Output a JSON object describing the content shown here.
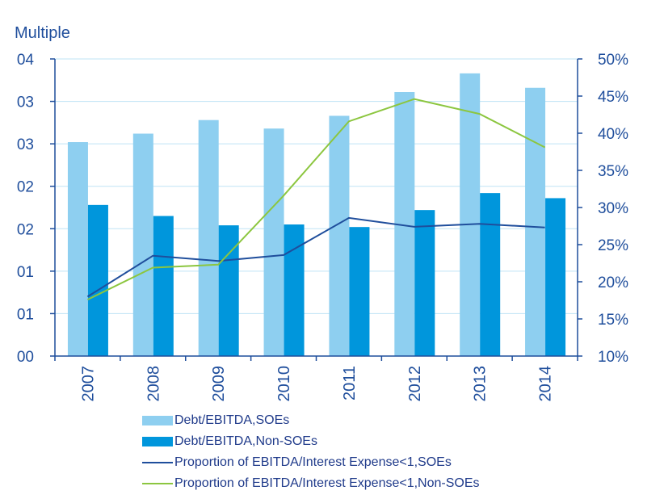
{
  "chart_data": {
    "type": "bar",
    "y_unit_label": "Multiple",
    "categories": [
      "2007",
      "2008",
      "2009",
      "2010",
      "2011",
      "2012",
      "2013",
      "2014"
    ],
    "left_axis": {
      "ticks": [
        "00",
        "01",
        "01",
        "02",
        "02",
        "03",
        "03",
        "04"
      ],
      "range": [
        0,
        3.5
      ]
    },
    "right_axis": {
      "ticks": [
        "10%",
        "15%",
        "20%",
        "25%",
        "30%",
        "35%",
        "40%",
        "45%",
        "50%"
      ],
      "range": [
        10,
        50
      ]
    },
    "bar_series": [
      {
        "name": "Debt/EBITDA,SOEs",
        "color": "#8ecff0",
        "values": [
          2.52,
          2.62,
          2.78,
          2.68,
          2.83,
          3.11,
          3.33,
          3.16
        ]
      },
      {
        "name": "Debt/EBITDA,Non-SOEs",
        "color": "#0096dc",
        "values": [
          1.78,
          1.65,
          1.54,
          1.55,
          1.52,
          1.72,
          1.92,
          1.86
        ]
      }
    ],
    "line_series": [
      {
        "name": "Proportion of EBITDA/Interest Expense<1,SOEs",
        "color": "#1f4e9c",
        "values": [
          18.0,
          23.5,
          22.8,
          23.6,
          28.6,
          27.4,
          27.8,
          27.3
        ]
      },
      {
        "name": "Proportion of EBITDA/Interest Expense<1,Non-SOEs",
        "color": "#8cc63f",
        "values": [
          17.6,
          21.9,
          22.3,
          31.6,
          41.6,
          44.6,
          42.6,
          38.1
        ]
      }
    ],
    "grid": "horizontal",
    "legend_position": "bottom"
  }
}
